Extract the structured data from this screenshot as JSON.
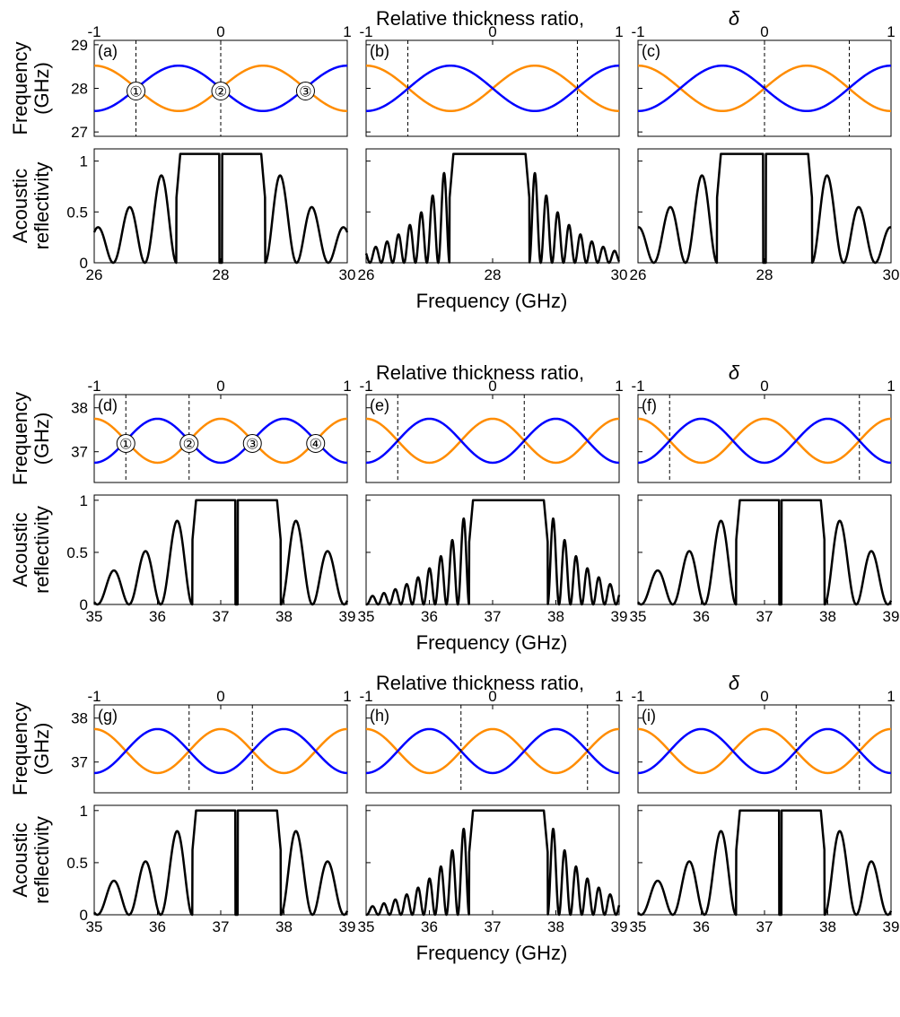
{
  "figure": {
    "top_axis_label": "Relative thickness ratio,",
    "top_axis_symbol": "δ",
    "band_ylabel_line1": "Frequency",
    "band_ylabel_line2": "(GHz)",
    "refl_ylabel_line1": "Acoustic",
    "refl_ylabel_line2": "reflectivity",
    "xlabel": "Frequency (GHz)",
    "colors": {
      "blue": "#0000ff",
      "orange": "#ff8c00",
      "black": "#000000"
    }
  },
  "groups": [
    {
      "delta_ticks": [
        "-1",
        "0",
        "1"
      ],
      "band_yticks": [
        29,
        28,
        27
      ],
      "band_ylim": [
        26.9,
        29.1
      ],
      "band_center": 28.0,
      "band_amp": 0.52,
      "band_periods": 1.5,
      "freq_xlim": [
        26,
        30
      ],
      "freq_xticks": [
        26,
        28,
        30
      ],
      "refl_yticks": [
        1,
        0.5,
        0
      ],
      "refl_ylim": [
        0,
        1.12
      ],
      "panels": [
        {
          "label": "(a)",
          "dashed_delta": [
            -0.67,
            0.0
          ],
          "circles": [
            {
              "text": "①",
              "delta": -0.67
            },
            {
              "text": "②",
              "delta": 0.0
            },
            {
              "text": "③",
              "delta": 0.67
            }
          ],
          "refl": {
            "type": "notched",
            "center": 28.0,
            "halfwidth": 0.7,
            "peak": 1.07,
            "decay": 0.9,
            "sidelobe_period": 0.5
          }
        },
        {
          "label": "(b)",
          "dashed_delta": [
            -0.67,
            0.67
          ],
          "circles": [],
          "refl": {
            "type": "wide",
            "center": 27.95,
            "halfwidth": 0.63,
            "peak": 1.07,
            "decay": 0.45,
            "sidelobe_period": 0.18
          }
        },
        {
          "label": "(c)",
          "dashed_delta": [
            0.0,
            0.67
          ],
          "circles": [],
          "refl": {
            "type": "notched",
            "center": 28.0,
            "halfwidth": 0.75,
            "peak": 1.07,
            "decay": 0.9,
            "sidelobe_period": 0.5
          }
        }
      ]
    },
    {
      "delta_ticks": [
        "-1",
        "0",
        "1"
      ],
      "band_yticks": [
        38,
        37
      ],
      "band_ylim": [
        36.3,
        38.3
      ],
      "band_center": 37.25,
      "band_amp": 0.5,
      "band_periods": 2,
      "freq_xlim": [
        35,
        39
      ],
      "freq_xticks": [
        35,
        36,
        37,
        38,
        39
      ],
      "refl_yticks": [
        1,
        0.5,
        0
      ],
      "refl_ylim": [
        0,
        1.05
      ],
      "panels": [
        {
          "label": "(d)",
          "dashed_delta": [
            -0.75,
            -0.25
          ],
          "circles": [
            {
              "text": "①",
              "delta": -0.75
            },
            {
              "text": "②",
              "delta": -0.25
            },
            {
              "text": "③",
              "delta": 0.25
            },
            {
              "text": "④",
              "delta": 0.75
            }
          ],
          "refl": {
            "type": "notched",
            "center": 37.25,
            "halfwidth": 0.7,
            "peak": 1.0,
            "decay": 0.9,
            "sidelobe_period": 0.5
          }
        },
        {
          "label": "(e)",
          "dashed_delta": [
            -0.75,
            0.25
          ],
          "circles": [],
          "refl": {
            "type": "wide",
            "center": 37.25,
            "halfwidth": 0.62,
            "peak": 1.0,
            "decay": 0.45,
            "sidelobe_period": 0.18
          }
        },
        {
          "label": "(f)",
          "dashed_delta": [
            -0.75,
            0.75
          ],
          "circles": [],
          "refl": {
            "type": "notched",
            "center": 37.25,
            "halfwidth": 0.7,
            "peak": 1.0,
            "decay": 0.9,
            "sidelobe_period": 0.5
          }
        }
      ]
    },
    {
      "delta_ticks": [
        "-1",
        "0",
        "1"
      ],
      "band_yticks": [
        38,
        37
      ],
      "band_ylim": [
        36.3,
        38.3
      ],
      "band_center": 37.25,
      "band_amp": 0.5,
      "band_periods": 2,
      "freq_xlim": [
        35,
        39
      ],
      "freq_xticks": [
        35,
        36,
        37,
        38,
        39
      ],
      "refl_yticks": [
        1,
        0.5,
        0
      ],
      "refl_ylim": [
        0,
        1.05
      ],
      "panels": [
        {
          "label": "(g)",
          "dashed_delta": [
            -0.25,
            0.25
          ],
          "circles": [],
          "refl": {
            "type": "notched",
            "center": 37.25,
            "halfwidth": 0.7,
            "peak": 1.0,
            "decay": 0.9,
            "sidelobe_period": 0.5
          }
        },
        {
          "label": "(h)",
          "dashed_delta": [
            -0.25,
            0.75
          ],
          "circles": [],
          "refl": {
            "type": "wide",
            "center": 37.25,
            "halfwidth": 0.62,
            "peak": 1.0,
            "decay": 0.45,
            "sidelobe_period": 0.18
          }
        },
        {
          "label": "(i)",
          "dashed_delta": [
            0.25,
            0.75
          ],
          "circles": [],
          "refl": {
            "type": "notched",
            "center": 37.25,
            "halfwidth": 0.7,
            "peak": 1.0,
            "decay": 0.9,
            "sidelobe_period": 0.5
          }
        }
      ]
    }
  ],
  "chart_data": [
    {
      "type": "line",
      "panel": "(a)-(c)",
      "x_label": "Relative thickness ratio, δ",
      "y_label": "Frequency (GHz)",
      "xlim": [
        -1,
        1
      ],
      "ylim": [
        26.9,
        29.1
      ],
      "series": [
        {
          "color": "orange"
        },
        {
          "color": "blue"
        }
      ]
    },
    {
      "type": "line",
      "panel": "(a)-(c)",
      "x_label": "Frequency (GHz)",
      "y_label": "Acoustic reflectivity",
      "xlim": [
        26,
        30
      ],
      "ylim": [
        0,
        1.12
      ]
    },
    {
      "type": "line",
      "panel": "(d)-(i)",
      "x_label": "Relative thickness ratio, δ",
      "y_label": "Frequency (GHz)",
      "xlim": [
        -1,
        1
      ],
      "ylim": [
        36.3,
        38.3
      ],
      "series": [
        {
          "color": "orange"
        },
        {
          "color": "blue"
        }
      ]
    },
    {
      "type": "line",
      "panel": "(d)-(i)",
      "x_label": "Frequency (GHz)",
      "y_label": "Acoustic reflectivity",
      "xlim": [
        35,
        39
      ],
      "ylim": [
        0,
        1.05
      ]
    }
  ]
}
